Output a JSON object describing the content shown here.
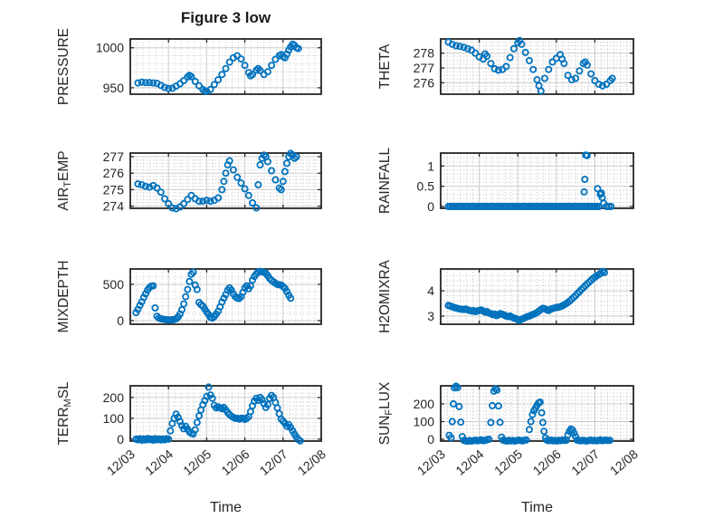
{
  "figure": {
    "title": "Figure 3 low",
    "xlabel": "Time"
  },
  "style": {
    "accent": "#0072BD",
    "axis_color": "#262626",
    "text_color": "#262626",
    "grid_major": "#cccccc",
    "grid_minor": "#bdbdbd",
    "background": "#ffffff"
  },
  "x_axis": {
    "range_days": [
      0,
      5
    ],
    "tick_values": [
      0,
      1,
      2,
      3,
      4,
      5
    ],
    "tick_labels": [
      "12/03",
      "12/04",
      "12/05",
      "12/06",
      "12/07",
      "12/08"
    ],
    "minor_per_day": 6,
    "label": "Time",
    "time_unit": "days after 12/03"
  },
  "chart_data": [
    {
      "name": "pressure",
      "type": "scatter",
      "row": 0,
      "col": 0,
      "ylabel": "PRESSURE",
      "ylabel_parts": [
        {
          "text": "PRESSURE"
        }
      ],
      "ylim": [
        942,
        1011
      ],
      "yticks": [
        950,
        1000
      ],
      "ytick_labels": [
        "950",
        "1000"
      ],
      "yminor": 10,
      "t": [
        0.2,
        0.3,
        0.4,
        0.5,
        0.6,
        0.7,
        0.8,
        0.9,
        1.0,
        1.1,
        1.2,
        1.3,
        1.4,
        1.5,
        1.55,
        1.6,
        1.7,
        1.8,
        1.9,
        1.95,
        2.0,
        2.1,
        2.2,
        2.3,
        2.4,
        2.5,
        2.6,
        2.7,
        2.8,
        2.9,
        3.0,
        3.1,
        3.15,
        3.2,
        3.3,
        3.35,
        3.4,
        3.5,
        3.6,
        3.7,
        3.8,
        3.9,
        3.95,
        4.0,
        4.05,
        4.1,
        4.15,
        4.2,
        4.25,
        4.3,
        4.35,
        4.4
      ],
      "v": [
        956,
        957,
        956.5,
        956.5,
        956,
        955.5,
        953,
        950.5,
        949,
        949.5,
        952,
        955,
        959,
        963.5,
        965.5,
        964,
        958,
        952.5,
        948,
        946,
        945.5,
        948,
        954,
        960,
        966.5,
        974,
        982,
        987.5,
        990,
        986,
        978,
        969,
        965,
        966.5,
        972,
        974,
        971.5,
        966.5,
        970,
        978,
        985.5,
        990,
        991.5,
        989,
        987.5,
        992,
        997,
        1001,
        1004.5,
        1003,
        1000,
        999
      ]
    },
    {
      "name": "theta",
      "type": "scatter",
      "row": 0,
      "col": 1,
      "ylabel": "THETA",
      "ylabel_parts": [
        {
          "text": "THETA"
        }
      ],
      "ylim": [
        275.23,
        278.96
      ],
      "yticks": [
        276,
        277,
        278
      ],
      "ytick_labels": [
        "276",
        "277",
        "278"
      ],
      "yminor": 0.25,
      "t": [
        0.2,
        0.3,
        0.4,
        0.5,
        0.6,
        0.7,
        0.8,
        0.9,
        1.0,
        1.1,
        1.15,
        1.2,
        1.3,
        1.4,
        1.5,
        1.6,
        1.7,
        1.8,
        1.9,
        2.0,
        2.05,
        2.1,
        2.2,
        2.3,
        2.4,
        2.5,
        2.55,
        2.6,
        2.7,
        2.8,
        2.9,
        3.0,
        3.1,
        3.15,
        3.2,
        3.3,
        3.4,
        3.5,
        3.6,
        3.7,
        3.75,
        3.8,
        3.9,
        4.0,
        4.1,
        4.2,
        4.3,
        4.4,
        4.45
      ],
      "v": [
        278.75,
        278.6,
        278.5,
        278.45,
        278.4,
        278.3,
        278.2,
        278.0,
        277.75,
        277.6,
        277.95,
        277.8,
        277.3,
        276.95,
        276.85,
        276.9,
        277.1,
        277.7,
        278.3,
        278.7,
        278.85,
        278.6,
        278.05,
        277.5,
        276.9,
        276.2,
        275.8,
        275.45,
        276.3,
        276.9,
        277.4,
        277.65,
        277.9,
        277.6,
        277.3,
        276.5,
        276.2,
        276.3,
        276.8,
        277.3,
        277.4,
        277.2,
        276.6,
        276.15,
        275.9,
        275.8,
        275.9,
        276.15,
        276.3
      ]
    },
    {
      "name": "air-temp",
      "type": "scatter",
      "row": 1,
      "col": 0,
      "ylabel": "AIR_TEMP",
      "ylabel_parts": [
        {
          "text": "AIR"
        },
        {
          "text": "T",
          "sub": true
        },
        {
          "text": "EMP"
        }
      ],
      "ylim": [
        273.87,
        277.22
      ],
      "yticks": [
        274,
        275,
        276,
        277
      ],
      "ytick_labels": [
        "274",
        "275",
        "276",
        "277"
      ],
      "yminor": 0.2,
      "t": [
        0.2,
        0.3,
        0.4,
        0.5,
        0.6,
        0.7,
        0.8,
        0.9,
        1.0,
        1.1,
        1.2,
        1.3,
        1.4,
        1.5,
        1.6,
        1.7,
        1.8,
        1.9,
        2.0,
        2.1,
        2.2,
        2.3,
        2.4,
        2.45,
        2.5,
        2.55,
        2.6,
        2.7,
        2.8,
        2.9,
        3.0,
        3.1,
        3.2,
        3.3,
        3.35,
        3.4,
        3.45,
        3.5,
        3.55,
        3.6,
        3.7,
        3.8,
        3.9,
        3.95,
        4.0,
        4.05,
        4.1,
        4.15,
        4.2,
        4.25,
        4.3,
        4.35
      ],
      "v": [
        275.35,
        275.3,
        275.2,
        275.15,
        275.25,
        275.1,
        274.85,
        274.45,
        274.15,
        273.9,
        273.85,
        273.95,
        274.15,
        274.4,
        274.65,
        274.45,
        274.3,
        274.3,
        274.35,
        274.3,
        274.35,
        274.5,
        275.0,
        275.5,
        276.0,
        276.5,
        276.75,
        276.2,
        275.75,
        275.4,
        275.05,
        274.65,
        274.2,
        273.9,
        275.3,
        276.5,
        276.9,
        277.1,
        277.0,
        276.7,
        276.15,
        275.6,
        275.1,
        275.0,
        275.5,
        276.1,
        276.6,
        277.0,
        277.2,
        277.1,
        276.9,
        277.0
      ]
    },
    {
      "name": "rainfall",
      "type": "scatter",
      "row": 1,
      "col": 1,
      "ylabel": "RAINFALL",
      "ylabel_parts": [
        {
          "text": "RAINFALL"
        }
      ],
      "ylim": [
        -0.045,
        1.32
      ],
      "yticks": [
        0,
        0.5,
        1
      ],
      "ytick_labels": [
        "0",
        "0.5",
        "1"
      ],
      "yminor": 0.1,
      "t0": 0.2,
      "dt": 0.05,
      "v": [
        0,
        0,
        0,
        0,
        0,
        0,
        0,
        0,
        0,
        0,
        0,
        0,
        0,
        0,
        0,
        0,
        0,
        0,
        0,
        0,
        0,
        0,
        0,
        0,
        0,
        0,
        0,
        0,
        0,
        0,
        0,
        0,
        0,
        0,
        0,
        0,
        0,
        0,
        0,
        0,
        0,
        0,
        0,
        0,
        0,
        0,
        0,
        0,
        0,
        0,
        0,
        0,
        0,
        0,
        0,
        0,
        0,
        0,
        0,
        0,
        0,
        0,
        0,
        0,
        0,
        0,
        0,
        0,
        0,
        0,
        0,
        0,
        0,
        0,
        0,
        0,
        0,
        0,
        0
      ],
      "extra_points": [
        [
          3.72,
          0.36
        ],
        [
          3.74,
          0.67
        ],
        [
          3.76,
          1.27
        ],
        [
          3.8,
          1.26
        ],
        [
          4.07,
          0.44
        ],
        [
          4.14,
          0.3
        ],
        [
          4.17,
          0.33
        ],
        [
          4.19,
          0.22
        ],
        [
          4.23,
          0.08
        ],
        [
          4.3,
          0
        ],
        [
          4.36,
          0
        ],
        [
          4.42,
          0
        ]
      ]
    },
    {
      "name": "mixdepth",
      "type": "scatter",
      "row": 2,
      "col": 0,
      "ylabel": "MIXDEPTH",
      "ylabel_parts": [
        {
          "text": "MIXDEPTH"
        }
      ],
      "ylim": [
        -50,
        712
      ],
      "yticks": [
        0,
        500
      ],
      "ytick_labels": [
        "0",
        "500"
      ],
      "yminor": 100,
      "t0": 0.15,
      "dt": 0.05,
      "v": [
        110,
        155,
        210,
        260,
        320,
        370,
        420,
        455,
        475,
        480,
        175,
        60,
        35,
        25,
        20,
        15,
        12,
        10,
        10,
        12,
        15,
        25,
        50,
        90,
        150,
        230,
        330,
        430,
        540,
        640,
        668,
        490,
        430,
        250,
        220,
        200,
        160,
        120,
        85,
        45,
        35,
        55,
        90,
        130,
        190,
        255,
        310,
        360,
        420,
        450,
        420,
        370,
        330,
        310,
        305,
        330,
        390,
        450,
        480,
        440,
        480,
        560,
        610,
        645,
        668,
        680,
        672,
        665,
        655,
        620,
        580,
        555,
        535,
        515,
        500,
        495,
        490,
        470,
        445,
        400,
        350,
        310
      ]
    },
    {
      "name": "h2omixra",
      "type": "scatter",
      "row": 2,
      "col": 1,
      "ylabel": "H2OMIXRA",
      "ylabel_parts": [
        {
          "text": "H2OMIXRA"
        }
      ],
      "ylim": [
        2.68,
        4.86
      ],
      "yticks": [
        3,
        4
      ],
      "ytick_labels": [
        "3",
        "4"
      ],
      "yminor": 0.2,
      "t0": 0.2,
      "dt": 0.05,
      "v": [
        3.42,
        3.4,
        3.37,
        3.34,
        3.32,
        3.3,
        3.28,
        3.27,
        3.26,
        3.28,
        3.25,
        3.22,
        3.2,
        3.22,
        3.18,
        3.2,
        3.22,
        3.24,
        3.2,
        3.16,
        3.18,
        3.12,
        3.1,
        3.06,
        3.08,
        3.02,
        3.05,
        3.1,
        3.07,
        3.04,
        3.0,
        2.98,
        3.0,
        2.96,
        2.92,
        2.9,
        2.86,
        2.83,
        2.88,
        2.91,
        2.95,
        2.98,
        3.0,
        3.04,
        3.07,
        3.1,
        3.14,
        3.2,
        3.26,
        3.31,
        3.29,
        3.25,
        3.22,
        3.27,
        3.3,
        3.32,
        3.34,
        3.35,
        3.37,
        3.4,
        3.44,
        3.49,
        3.54,
        3.6,
        3.67,
        3.74,
        3.81,
        3.89,
        3.97,
        4.05,
        4.12,
        4.2,
        4.27,
        4.34,
        4.41,
        4.48,
        4.54,
        4.59,
        4.64,
        4.69,
        4.76,
        4.72
      ]
    },
    {
      "name": "terr-msl",
      "type": "scatter",
      "row": 3,
      "col": 0,
      "ylabel": "TERR_MSL",
      "ylabel_parts": [
        {
          "text": "TERR"
        },
        {
          "text": "M",
          "sub": true
        },
        {
          "text": "SL"
        }
      ],
      "ylim": [
        -9,
        256
      ],
      "yticks": [
        0,
        100,
        200
      ],
      "ytick_labels": [
        "0",
        "100",
        "200"
      ],
      "yminor": 20,
      "t0": 0.15,
      "dt": 0.05,
      "v": [
        0,
        -3,
        2,
        -5,
        1,
        -4,
        3,
        -2,
        0,
        -5,
        2,
        -3,
        1,
        -4,
        0,
        -3,
        2,
        0,
        40,
        75,
        100,
        120,
        105,
        85,
        65,
        50,
        62,
        48,
        35,
        28,
        25,
        45,
        80,
        112,
        140,
        165,
        185,
        205,
        250,
        212,
        196,
        162,
        150,
        155,
        150,
        146,
        152,
        140,
        128,
        118,
        110,
        105,
        100,
        100,
        96,
        100,
        100,
        95,
        100,
        108,
        132,
        160,
        182,
        196,
        186,
        200,
        190,
        170,
        152,
        166,
        196,
        210,
        200,
        176,
        150,
        122,
        96,
        86,
        76,
        62,
        70,
        56,
        40,
        24,
        10,
        -2,
        -8
      ]
    },
    {
      "name": "sun-flux",
      "type": "scatter",
      "row": 3,
      "col": 1,
      "ylabel": "SUN_FLUX",
      "ylabel_parts": [
        {
          "text": "SUN"
        },
        {
          "text": "F",
          "sub": true
        },
        {
          "text": "LUX"
        }
      ],
      "ylim": [
        -10,
        302
      ],
      "yticks": [
        0,
        100,
        200
      ],
      "ytick_labels": [
        "0",
        "100",
        "200"
      ],
      "yminor": 20,
      "t": [
        0.22,
        0.27,
        0.3,
        0.33,
        0.36,
        0.4,
        0.44,
        0.48,
        0.52,
        0.56,
        0.6,
        0.65,
        0.7,
        0.75,
        0.8,
        0.85,
        0.9,
        0.95,
        1.0,
        1.05,
        1.1,
        1.15,
        1.2,
        1.25,
        1.3,
        1.34,
        1.38,
        1.42,
        1.46,
        1.5,
        1.54,
        1.58,
        1.62,
        1.67,
        1.72,
        1.77,
        1.82,
        1.87,
        1.92,
        1.97,
        2.02,
        2.07,
        2.12,
        2.17,
        2.22,
        2.3,
        2.34,
        2.38,
        2.42,
        2.46,
        2.5,
        2.54,
        2.58,
        2.62,
        2.65,
        2.68,
        2.72,
        2.76,
        2.81,
        2.86,
        2.91,
        2.96,
        3.01,
        3.06,
        3.11,
        3.16,
        3.21,
        3.26,
        3.3,
        3.34,
        3.38,
        3.42,
        3.46,
        3.5,
        3.54,
        3.59,
        3.64,
        3.69,
        3.74,
        3.79,
        3.84,
        3.89,
        3.94,
        3.99,
        4.04,
        4.09,
        4.14,
        4.19,
        4.24,
        4.29,
        4.34,
        4.39
      ],
      "v": [
        22,
        8,
        100,
        200,
        290,
        300,
        292,
        185,
        97,
        15,
        -6,
        -9,
        -11,
        -7,
        -10,
        -8,
        -5,
        -9,
        -7,
        -4,
        -8,
        -6,
        -3,
        0,
        95,
        190,
        272,
        285,
        278,
        188,
        96,
        12,
        -5,
        -8,
        -10,
        -6,
        -9,
        -7,
        -10,
        -8,
        -5,
        -7,
        -9,
        -6,
        -4,
        55,
        100,
        140,
        162,
        176,
        192,
        205,
        210,
        150,
        95,
        45,
        8,
        -6,
        -8,
        -5,
        -9,
        -7,
        -10,
        -6,
        -8,
        -4,
        -7,
        -5,
        25,
        45,
        58,
        52,
        35,
        15,
        -5,
        -7,
        -9,
        -6,
        -8,
        -10,
        -7,
        -5,
        -8,
        -6,
        -9,
        -7,
        -4,
        -8,
        -6,
        -5,
        -7,
        -6
      ]
    }
  ]
}
